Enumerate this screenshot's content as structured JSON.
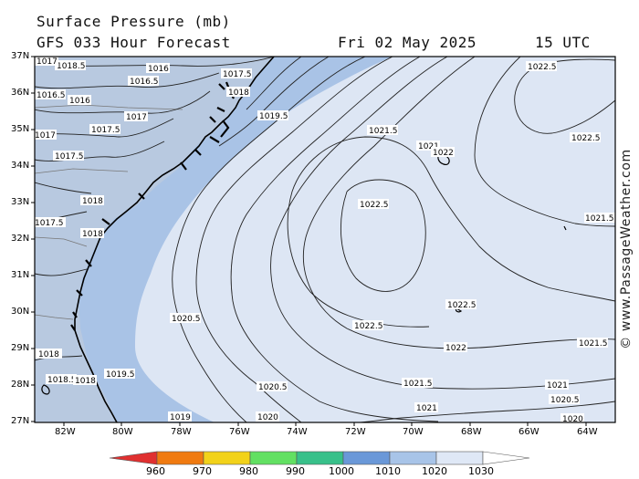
{
  "header": {
    "title": "Surface Pressure (mb)",
    "model": "GFS 033 Hour Forecast",
    "date": "Fri 02 May 2025",
    "time": "15 UTC"
  },
  "watermark": "© www.PassageWeather.com",
  "axes": {
    "lat_labels": [
      "37N",
      "36N",
      "35N",
      "34N",
      "33N",
      "32N",
      "31N",
      "30N",
      "29N",
      "28N",
      "27N"
    ],
    "lon_labels": [
      "82W",
      "80W",
      "78W",
      "76W",
      "74W",
      "72W",
      "70W",
      "68W",
      "66W",
      "64W"
    ]
  },
  "isobar_labels": [
    {
      "text": "1018.5"
    },
    {
      "text": "1016"
    },
    {
      "text": "1017.5"
    },
    {
      "text": "1016.5"
    },
    {
      "text": "1016"
    },
    {
      "text": "1017"
    },
    {
      "text": "1016.5"
    },
    {
      "text": "1018"
    },
    {
      "text": "1017.5"
    },
    {
      "text": "1019.5"
    },
    {
      "text": "1017"
    },
    {
      "text": "1017.5"
    },
    {
      "text": "1018"
    },
    {
      "text": "1017.5"
    },
    {
      "text": "1018"
    },
    {
      "text": "1020.5"
    },
    {
      "text": "1021.5"
    },
    {
      "text": "1021"
    },
    {
      "text": "1022"
    },
    {
      "text": "1022.5"
    },
    {
      "text": "1022.5"
    },
    {
      "text": "1022.5"
    },
    {
      "text": "1022.5"
    },
    {
      "text": "1022.5"
    },
    {
      "text": "1021.5"
    },
    {
      "text": "1022"
    },
    {
      "text": "1021.5"
    },
    {
      "text": "1021.5"
    },
    {
      "text": "1021"
    },
    {
      "text": "1021"
    },
    {
      "text": "1020.5"
    },
    {
      "text": "1020.5"
    },
    {
      "text": "1020"
    },
    {
      "text": "1020"
    },
    {
      "text": "1019"
    },
    {
      "text": "1019.5"
    },
    {
      "text": "1018"
    },
    {
      "text": "1018.5"
    },
    {
      "text": "1018"
    },
    {
      "text": "1017"
    }
  ],
  "colorbar": {
    "labels": [
      "960",
      "970",
      "980",
      "990",
      "1000",
      "1010",
      "1020",
      "1030"
    ],
    "colors": [
      "#e03030",
      "#f07a10",
      "#f2d21a",
      "#62e062",
      "#38c08a",
      "#6a98d8",
      "#a8c4e8",
      "#dfe8f6"
    ]
  },
  "colors": {
    "high_fill": "#dde6f4",
    "mid_fill": "#a9c3e6",
    "land_fill": "#d4d4d4",
    "border": "#000000"
  }
}
